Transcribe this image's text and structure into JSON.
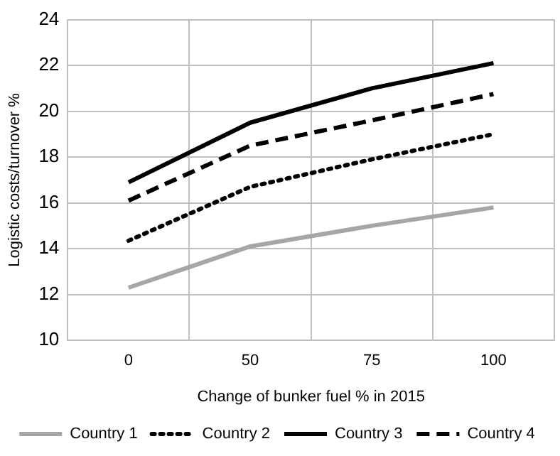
{
  "chart_data": {
    "type": "line",
    "xlabel": "Change of bunker fuel % in 2015",
    "ylabel": "Logistic costs/turnover %",
    "categories": [
      "0",
      "50",
      "75",
      "100"
    ],
    "series": [
      {
        "name": "Country 1",
        "color": "#a6a6a6",
        "line_style": "solid",
        "values": [
          12.3,
          14.1,
          15.0,
          15.8
        ]
      },
      {
        "name": "Country 2",
        "color": "#000000",
        "line_style": "dotted",
        "values": [
          14.35,
          16.7,
          17.9,
          19.0
        ]
      },
      {
        "name": "Country 3",
        "color": "#000000",
        "line_style": "solid",
        "values": [
          16.9,
          19.5,
          21.0,
          22.1
        ]
      },
      {
        "name": "Country 4",
        "color": "#000000",
        "line_style": "dashed",
        "values": [
          16.1,
          18.5,
          19.6,
          20.75
        ]
      }
    ],
    "ylim": [
      10,
      24
    ],
    "yticks": [
      10,
      12,
      14,
      16,
      18,
      20,
      22,
      24
    ],
    "grid": true,
    "legend": "bottom",
    "marker": "none"
  }
}
